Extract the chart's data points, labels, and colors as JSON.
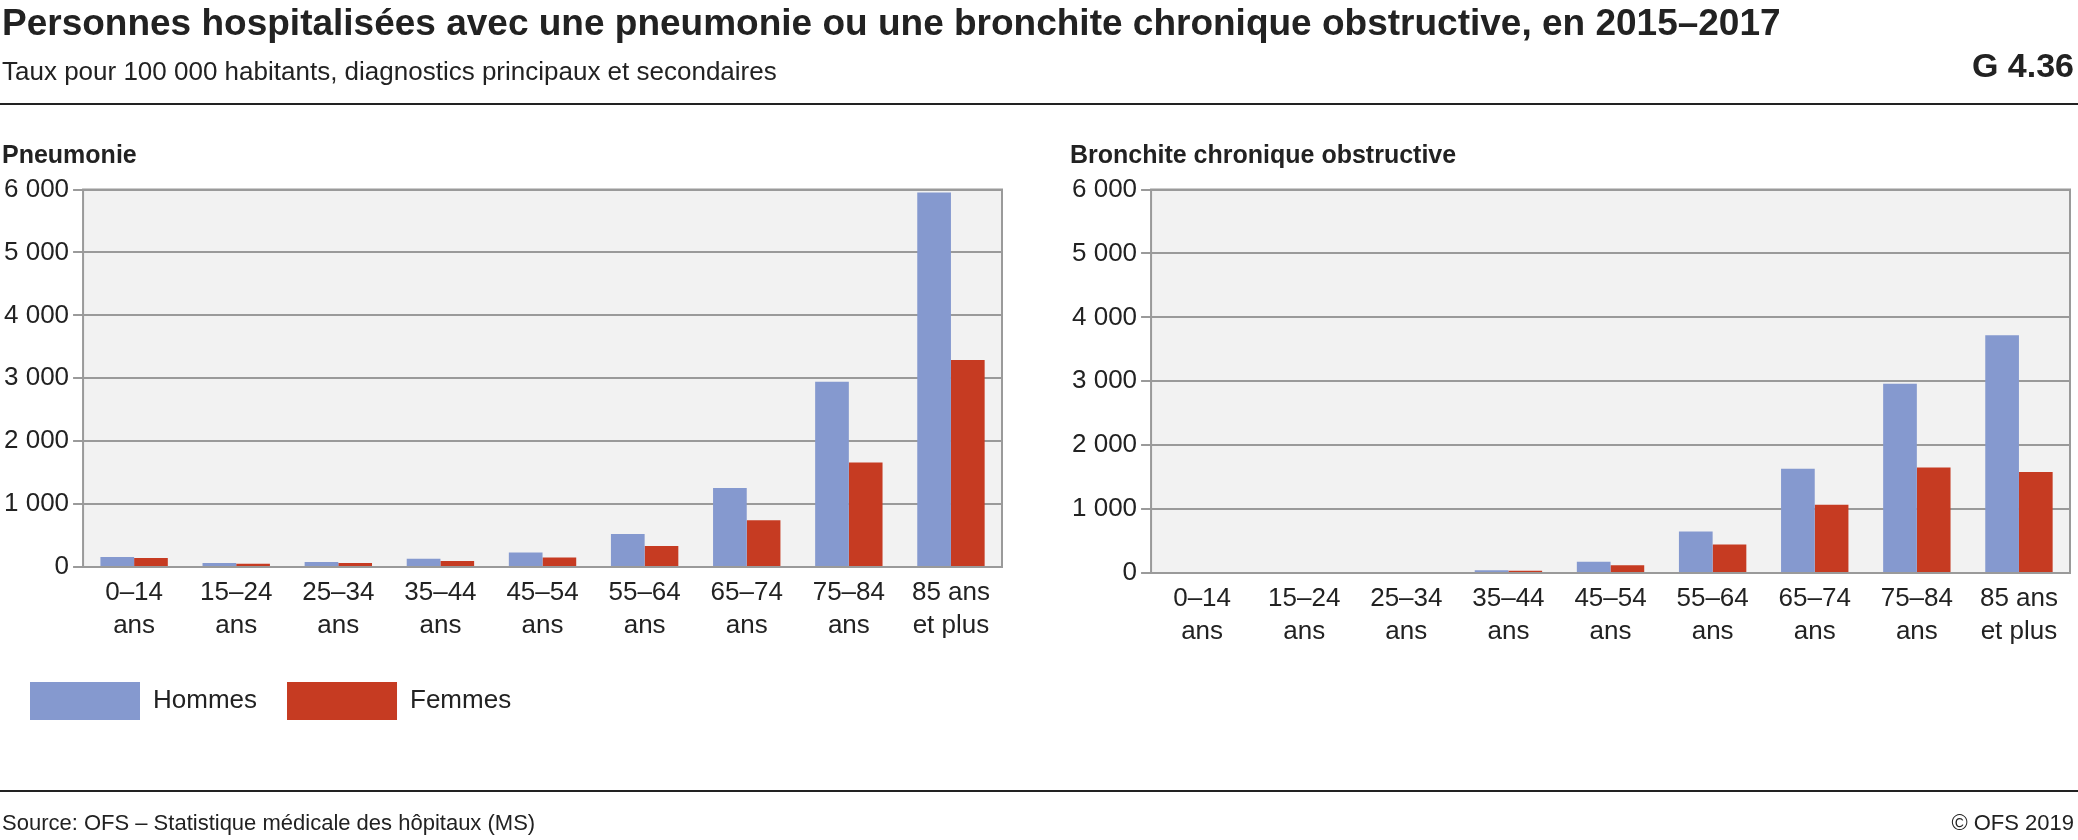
{
  "chart_data": [
    {
      "type": "other",
      "title": "Personnes hospitalisées avec une pneumonie ou une bronchite chronique obstructive, en 2015–2017",
      "subtitle": "Taux pour 100 000 habitants, diagnostics principaux et secondaires",
      "annotations": [
        "G 4.36",
        "Source: OFS – Statistique médicale des hôpitaux (MS)",
        "© OFS 2019"
      ]
    },
    {
      "type": "bar",
      "title": "Pneumonie",
      "categories": [
        "0–14 ans",
        "15–24 ans",
        "25–34 ans",
        "35–44 ans",
        "45–54 ans",
        "55–64 ans",
        "65–74 ans",
        "75–84 ans",
        "85 ans et plus"
      ],
      "series": [
        {
          "name": "Hommes",
          "color": "#8599cf",
          "values": [
            160,
            65,
            80,
            130,
            230,
            525,
            1255,
            2945,
            5955
          ]
        },
        {
          "name": "Femmes",
          "color": "#c63b22",
          "values": [
            145,
            50,
            65,
            95,
            150,
            335,
            745,
            1660,
            3290
          ]
        }
      ],
      "ylim": [
        0,
        6000
      ],
      "yticks": [
        {
          "value": 0,
          "label": "0"
        },
        {
          "value": 1000,
          "label": "1 000"
        },
        {
          "value": 2000,
          "label": "2 000"
        },
        {
          "value": 3000,
          "label": "3 000"
        },
        {
          "value": 4000,
          "label": "4 000"
        },
        {
          "value": 5000,
          "label": "5 000"
        },
        {
          "value": 6000,
          "label": "6 000"
        }
      ],
      "grid": "y",
      "legend": "bottom"
    },
    {
      "type": "bar",
      "title": "Bronchite chronique obstructive",
      "categories": [
        "0–14 ans",
        "15–24 ans",
        "25–34 ans",
        "35–44 ans",
        "45–54 ans",
        "55–64 ans",
        "65–74 ans",
        "75–84 ans",
        "85 ans et plus"
      ],
      "series": [
        {
          "color": "#8599cf",
          "values": [
            5,
            15,
            15,
            45,
            175,
            650,
            1630,
            2960,
            3720
          ]
        },
        {
          "color": "#c63b22",
          "values": [
            3,
            8,
            8,
            35,
            120,
            445,
            1070,
            1650,
            1580
          ]
        }
      ],
      "ylim": [
        0,
        6000
      ],
      "yticks": [
        {
          "value": 0,
          "label": "0"
        },
        {
          "value": 1000,
          "label": "1 000"
        },
        {
          "value": 2000,
          "label": "2 000"
        },
        {
          "value": 3000,
          "label": "3 000"
        },
        {
          "value": 4000,
          "label": "4 000"
        },
        {
          "value": 5000,
          "label": "5 000"
        },
        {
          "value": 6000,
          "label": "6 000"
        }
      ],
      "grid": "y"
    }
  ]
}
